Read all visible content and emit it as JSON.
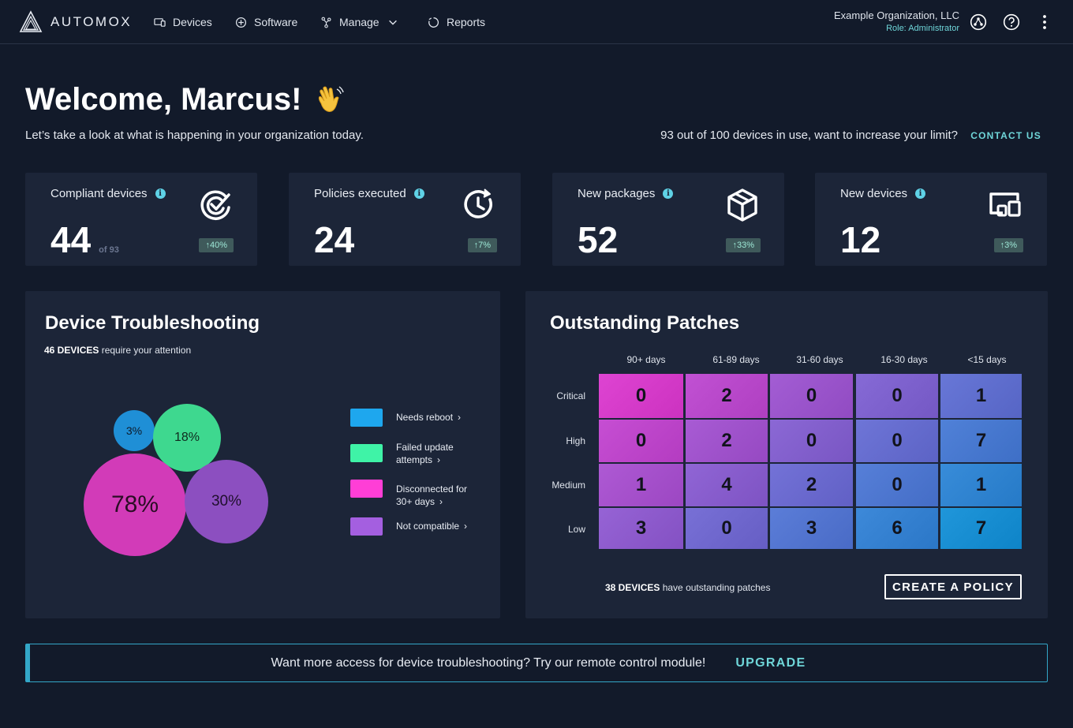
{
  "app": {
    "name": "AUTOMOX"
  },
  "nav": {
    "devices": "Devices",
    "software": "Software",
    "manage": "Manage",
    "reports": "Reports"
  },
  "org": {
    "name": "Example Organization, LLC",
    "role": "Role: Administrator"
  },
  "welcome": {
    "title": "Welcome, Marcus!",
    "subtitle": "Let’s take a look at what is happening in your organization today.",
    "limit_text": "93 out of 100 devices in use, want to increase your limit?",
    "contact": "CONTACT US"
  },
  "stats": [
    {
      "label": "Compliant devices",
      "value": "44",
      "of": "of 93",
      "badge": "↑40%",
      "icon": "check-circle-icon"
    },
    {
      "label": "Policies executed",
      "value": "24",
      "of": "",
      "badge": "↑7%",
      "icon": "clock-refresh-icon"
    },
    {
      "label": "New packages",
      "value": "52",
      "of": "",
      "badge": "↑33%",
      "icon": "package-icon"
    },
    {
      "label": "New devices",
      "value": "12",
      "of": "",
      "badge": "↑3%",
      "icon": "devices-icon"
    }
  ],
  "troubleshooting": {
    "title": "Device Troubleshooting",
    "count_bold": "46 DEVICES",
    "count_rest": " require your attention",
    "bubbles": [
      {
        "label": "3%",
        "value": 3,
        "color": "#1f8fd6"
      },
      {
        "label": "18%",
        "value": 18,
        "color": "#3ed88f"
      },
      {
        "label": "78%",
        "value": 78,
        "color": "#d23bb8"
      },
      {
        "label": "30%",
        "value": 30,
        "color": "#8c4fc0"
      }
    ],
    "legend": [
      {
        "text": "Needs reboot",
        "color": "#1ea7ee"
      },
      {
        "text": "Failed update attempts",
        "color": "#3ff3a7"
      },
      {
        "text": "Disconnected for 30+ days",
        "color": "#ff3ed6"
      },
      {
        "text": "Not compatible",
        "color": "#a45fe0"
      }
    ]
  },
  "patches": {
    "title": "Outstanding Patches",
    "columns": [
      "90+ days",
      "61-89 days",
      "31-60 days",
      "16-30 days",
      "<15 days"
    ],
    "rows": [
      "Critical",
      "High",
      "Medium",
      "Low"
    ],
    "values": [
      [
        0,
        2,
        0,
        0,
        1
      ],
      [
        0,
        2,
        0,
        0,
        7
      ],
      [
        1,
        4,
        2,
        0,
        1
      ],
      [
        3,
        0,
        3,
        6,
        7
      ]
    ],
    "footer_bold": "38 DEVICES",
    "footer_rest": " have outstanding patches",
    "button": "CREATE A POLICY"
  },
  "banner": {
    "text": "Want more access for device troubleshooting? Try our remote control module!",
    "cta": "UPGRADE"
  }
}
